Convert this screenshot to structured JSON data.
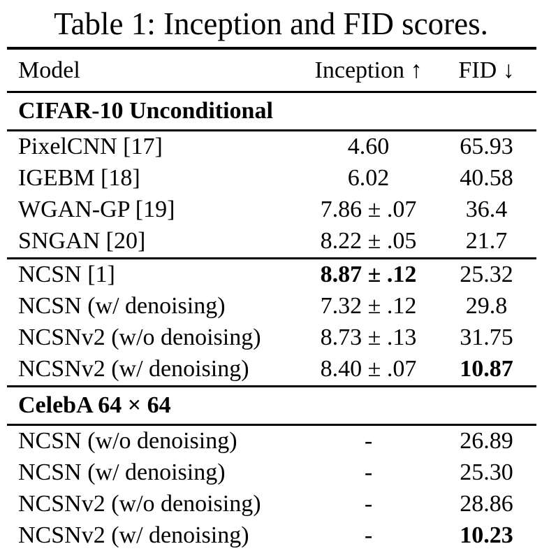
{
  "caption": "Table 1: Inception and FID scores.",
  "columns": {
    "model": "Model",
    "inception": "Inception ↑",
    "fid": "FID ↓"
  },
  "sections": [
    {
      "header": "CIFAR-10 Unconditional",
      "groups": [
        {
          "rows": [
            {
              "model": "PixelCNN [17]",
              "inception": "4.60",
              "fid": "65.93",
              "bold_inception": false,
              "bold_fid": false
            },
            {
              "model": "IGEBM [18]",
              "inception": "6.02",
              "fid": "40.58",
              "bold_inception": false,
              "bold_fid": false
            },
            {
              "model": "WGAN-GP [19]",
              "inception": "7.86 ± .07",
              "fid": "36.4",
              "bold_inception": false,
              "bold_fid": false
            },
            {
              "model": "SNGAN [20]",
              "inception": "8.22 ± .05",
              "fid": "21.7",
              "bold_inception": false,
              "bold_fid": false
            }
          ]
        },
        {
          "rows": [
            {
              "model": "NCSN [1]",
              "inception": "8.87 ± .12",
              "fid": "25.32",
              "bold_inception": true,
              "bold_fid": false
            },
            {
              "model": "NCSN (w/ denoising)",
              "inception": "7.32 ± .12",
              "fid": "29.8",
              "bold_inception": false,
              "bold_fid": false
            },
            {
              "model": "NCSNv2 (w/o denoising)",
              "inception": "8.73 ± .13",
              "fid": "31.75",
              "bold_inception": false,
              "bold_fid": false
            },
            {
              "model": "NCSNv2 (w/ denoising)",
              "inception": "8.40 ± .07",
              "fid": "10.87",
              "bold_inception": false,
              "bold_fid": true
            }
          ]
        }
      ]
    },
    {
      "header": "CelebA 64 × 64",
      "groups": [
        {
          "rows": [
            {
              "model": "NCSN (w/o denoising)",
              "inception": "-",
              "fid": "26.89",
              "bold_inception": false,
              "bold_fid": false
            },
            {
              "model": "NCSN (w/ denoising)",
              "inception": "-",
              "fid": "25.30",
              "bold_inception": false,
              "bold_fid": false
            },
            {
              "model": "NCSNv2 (w/o denoising)",
              "inception": "-",
              "fid": "28.86",
              "bold_inception": false,
              "bold_fid": false
            },
            {
              "model": "NCSNv2 (w/ denoising)",
              "inception": "-",
              "fid": "10.23",
              "bold_inception": false,
              "bold_fid": true
            }
          ]
        }
      ]
    }
  ],
  "colors": {
    "text": "#000000",
    "background": "#ffffff",
    "rule": "#000000"
  }
}
